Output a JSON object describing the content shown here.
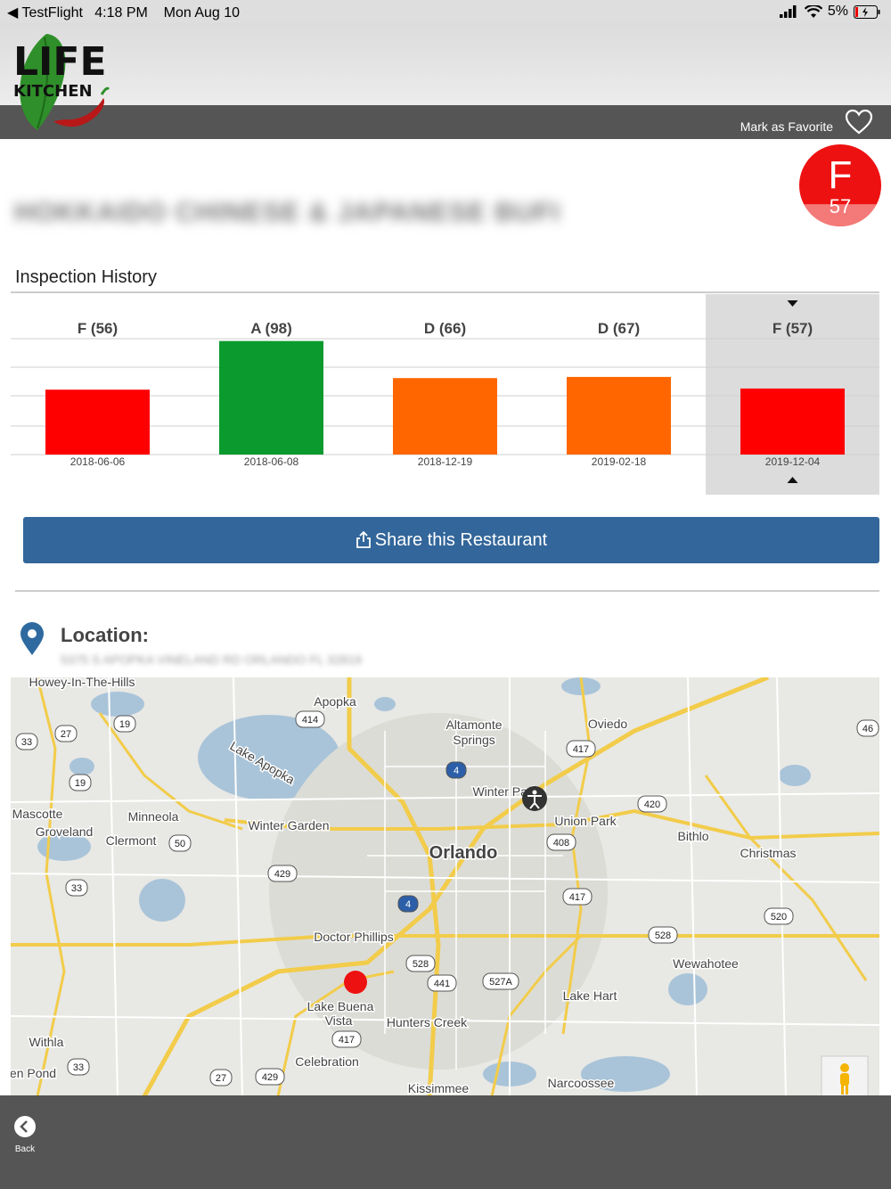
{
  "status_bar": {
    "back_app": "◀ TestFlight",
    "time": "4:18 PM",
    "date": "Mon Aug 10",
    "battery": "5%"
  },
  "header": {
    "logo_text_top": "LIFE",
    "logo_text_bottom": "KITCHEN",
    "favorite_label": "Mark as Favorite"
  },
  "grade_badge": {
    "letter": "F",
    "score": "57",
    "fill_fraction": 0.57,
    "color": "#ee1111"
  },
  "restaurant": {
    "name": "HOKKAIDO CHINESE & JAPANESE BUFFET",
    "address": "5375 S APOPKA VINELAND RD ORLANDO FL 32819"
  },
  "inspection": {
    "title": "Inspection History"
  },
  "chart_data": {
    "type": "bar",
    "categories": [
      "2018-06-06",
      "2018-06-08",
      "2018-12-19",
      "2019-02-18",
      "2019-12-04"
    ],
    "values": [
      56,
      98,
      66,
      67,
      57
    ],
    "labels": [
      "F (56)",
      "A (98)",
      "D (66)",
      "D (67)",
      "F (57)"
    ],
    "colors": [
      "#ff0000",
      "#0a9a2e",
      "#ff6600",
      "#ff6600",
      "#ff0000"
    ],
    "selected_index": 4,
    "ylim": [
      0,
      100
    ],
    "grid": true
  },
  "share": {
    "label": "Share this Restaurant"
  },
  "location": {
    "label": "Location:"
  },
  "map": {
    "places": [
      {
        "name": "Howey-In-The-Hills"
      },
      {
        "name": "Apopka"
      },
      {
        "name": "Altamonte"
      },
      {
        "name": "Springs"
      },
      {
        "name": "Oviedo"
      },
      {
        "name": "Lake Apopka"
      },
      {
        "name": "Winter Park"
      },
      {
        "name": "Mascotte"
      },
      {
        "name": "Minneola"
      },
      {
        "name": "Groveland"
      },
      {
        "name": "Clermont"
      },
      {
        "name": "Winter Garden"
      },
      {
        "name": "Union Park"
      },
      {
        "name": "Bithlo"
      },
      {
        "name": "Orlando"
      },
      {
        "name": "Christmas"
      },
      {
        "name": "Doctor Phillips"
      },
      {
        "name": "Wewahotee"
      },
      {
        "name": "Lake Buena"
      },
      {
        "name": "Vista"
      },
      {
        "name": "Hunters Creek"
      },
      {
        "name": "Lake Hart"
      },
      {
        "name": "Withla"
      },
      {
        "name": "en Pond"
      },
      {
        "name": "Celebration"
      },
      {
        "name": "Narcoossee"
      },
      {
        "name": "Kissimmee"
      }
    ],
    "shields": [
      "19",
      "27",
      "33",
      "414",
      "417",
      "46",
      "19",
      "50",
      "420",
      "408",
      "429",
      "33",
      "417",
      "520",
      "528",
      "528",
      "441",
      "527A",
      "417",
      "33",
      "27",
      "429",
      "4",
      "4"
    ]
  },
  "footer": {
    "back_label": "Back"
  },
  "colors": {
    "accent_blue": "#33669a",
    "bar_dark": "#555555"
  }
}
